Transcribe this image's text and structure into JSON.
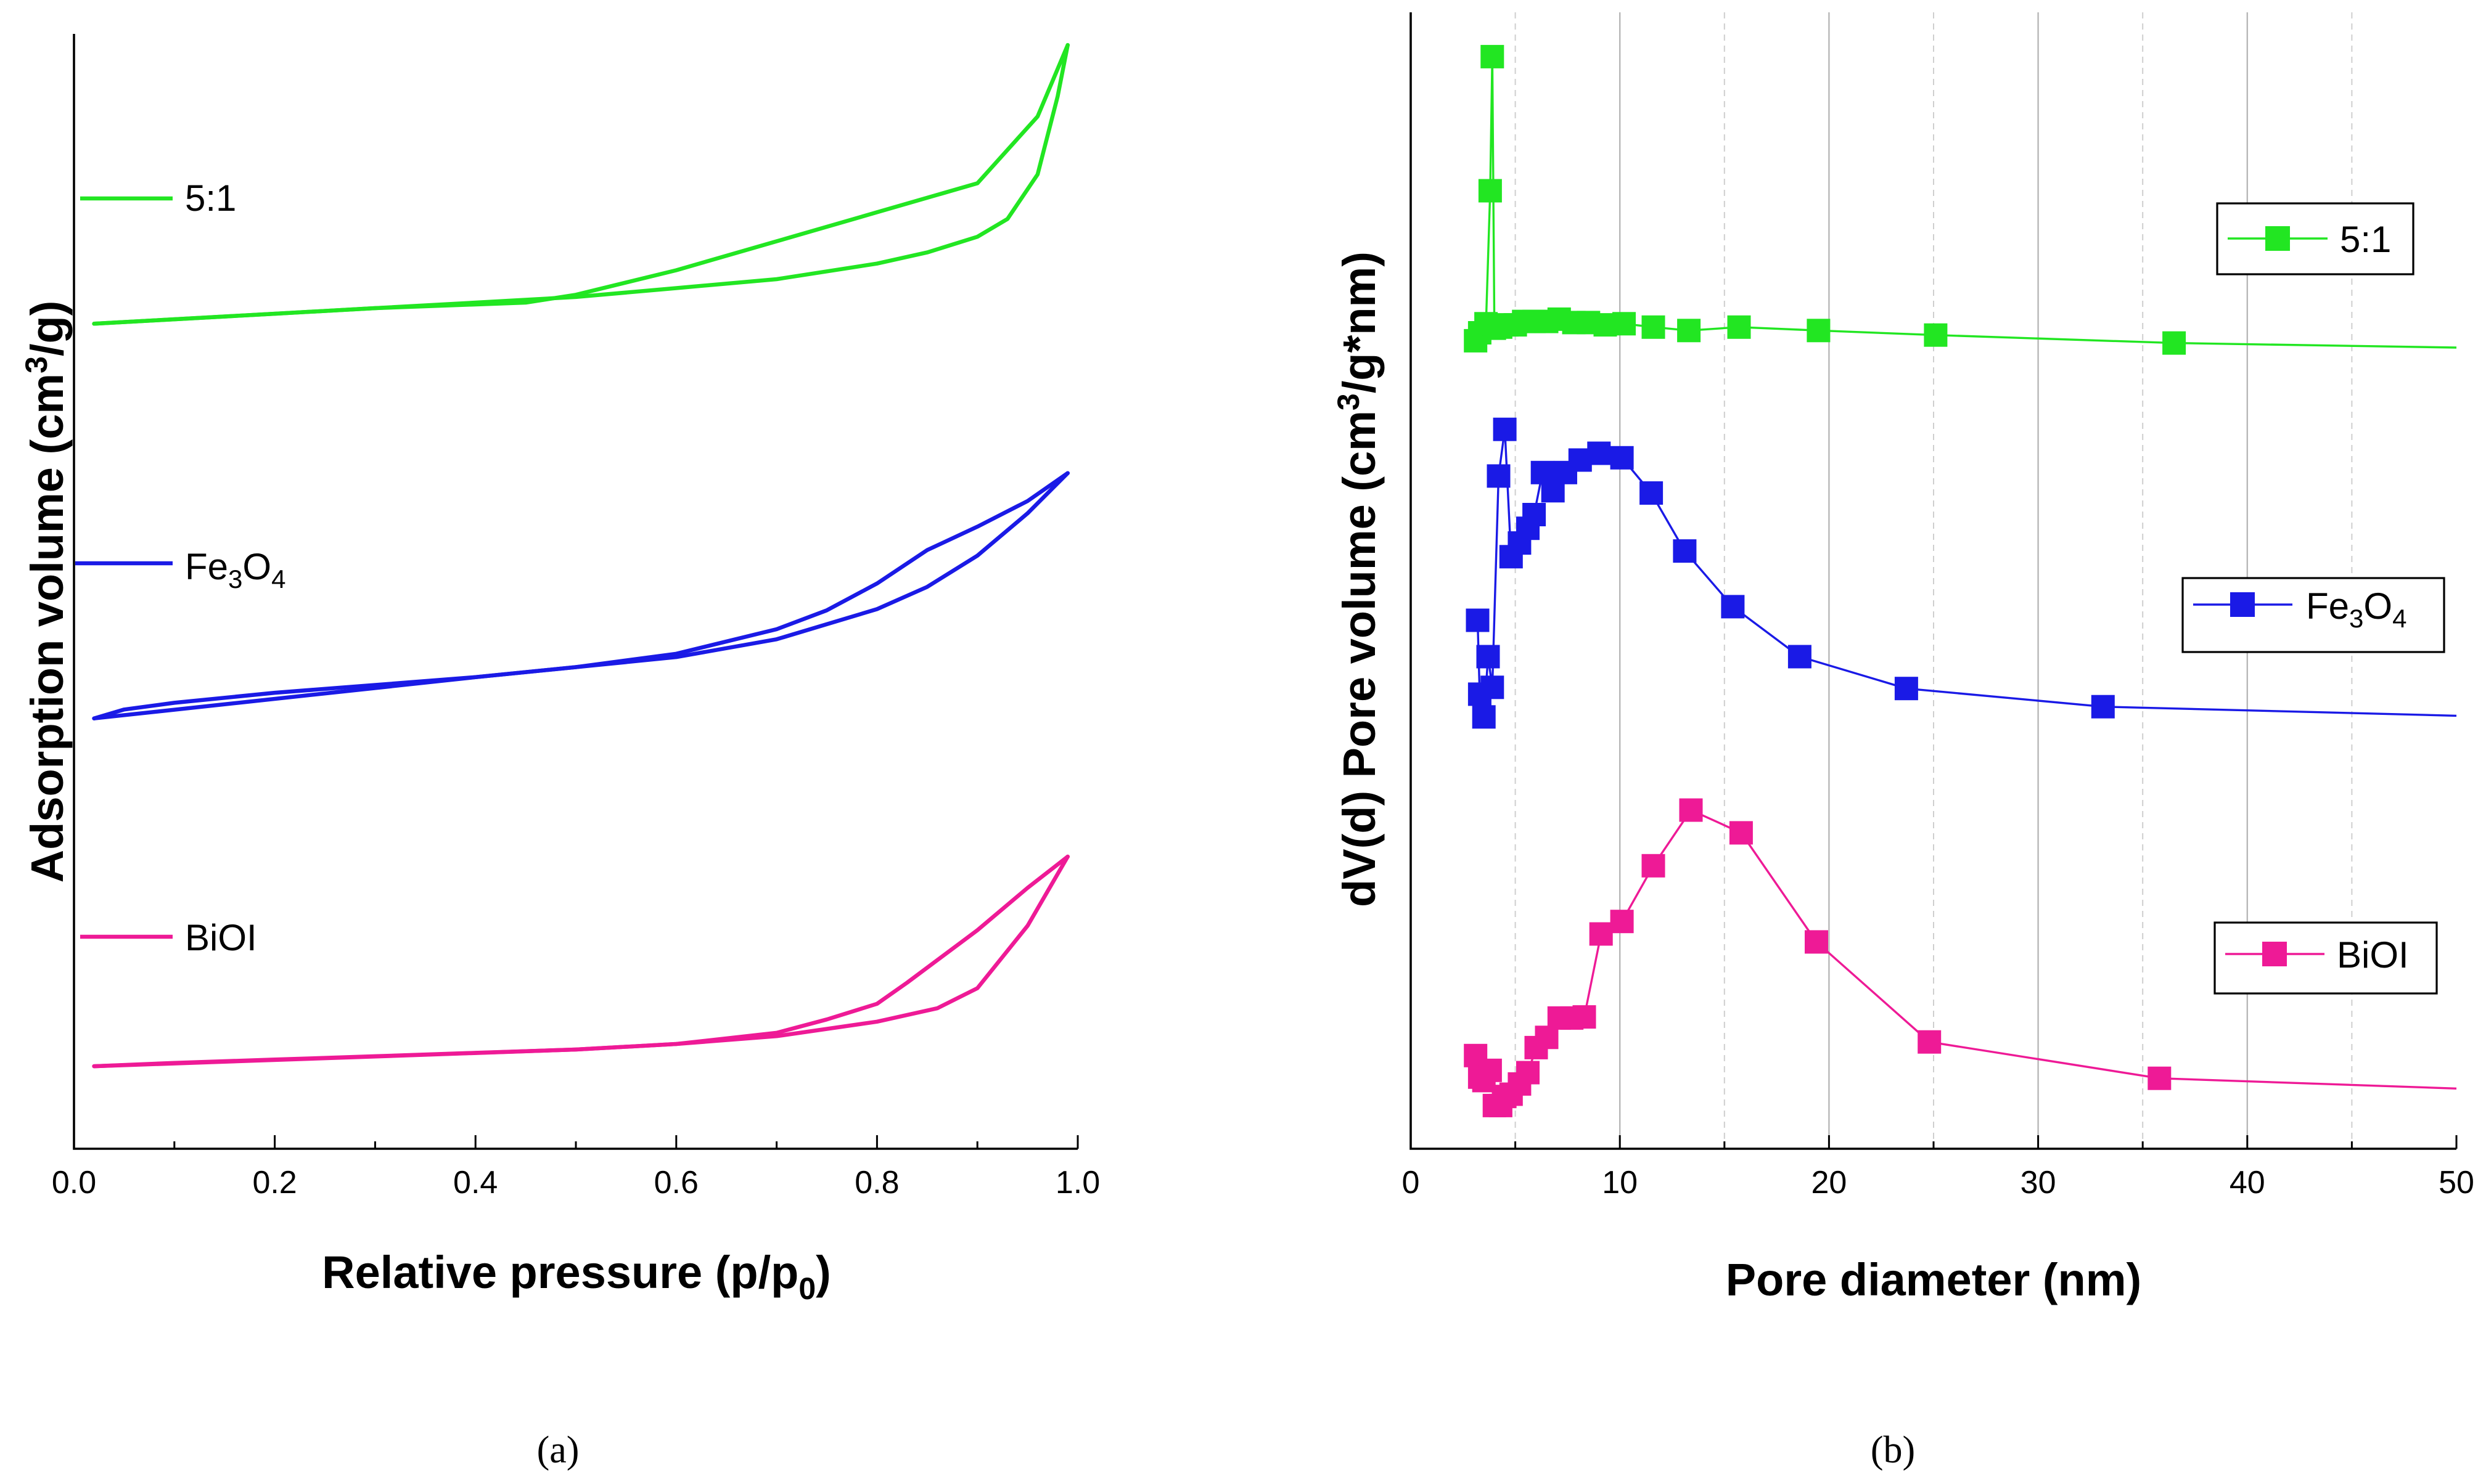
{
  "chart_data": [
    {
      "panel": "(a)",
      "type": "line",
      "title": "",
      "xlabel": "Relative pressure (p/p0)",
      "ylabel": "Adsorption volume (cm3/g)",
      "xlim": [
        0.0,
        1.0
      ],
      "ylim": [
        0,
        100
      ],
      "x_ticks": [
        "0.0",
        "0.2",
        "0.4",
        "0.6",
        "0.8",
        "1.0"
      ],
      "y_ticks_shown": false,
      "legend_placement": "inline-left",
      "series": [
        {
          "name": "5:1",
          "color": "#22e622",
          "adsorption": [
            [
              0.02,
              74.0
            ],
            [
              0.1,
              74.4
            ],
            [
              0.2,
              74.9
            ],
            [
              0.3,
              75.4
            ],
            [
              0.4,
              75.9
            ],
            [
              0.5,
              76.4
            ],
            [
              0.6,
              77.2
            ],
            [
              0.7,
              78.0
            ],
            [
              0.8,
              79.4
            ],
            [
              0.85,
              80.4
            ],
            [
              0.9,
              81.8
            ],
            [
              0.93,
              83.4
            ],
            [
              0.96,
              87.4
            ],
            [
              0.98,
              94.4
            ],
            [
              0.99,
              99.0
            ]
          ],
          "desorption": [
            [
              0.99,
              99.0
            ],
            [
              0.96,
              92.6
            ],
            [
              0.9,
              86.6
            ],
            [
              0.8,
              84.0
            ],
            [
              0.7,
              81.4
            ],
            [
              0.6,
              78.8
            ],
            [
              0.5,
              76.6
            ],
            [
              0.45,
              75.9
            ],
            [
              0.3,
              75.4
            ],
            [
              0.02,
              74.0
            ]
          ]
        },
        {
          "name": "Fe3O4",
          "color": "#1a1ae6",
          "adsorption": [
            [
              0.02,
              38.6
            ],
            [
              0.05,
              39.4
            ],
            [
              0.1,
              40.0
            ],
            [
              0.2,
              40.9
            ],
            [
              0.3,
              41.6
            ],
            [
              0.4,
              42.3
            ],
            [
              0.5,
              43.2
            ],
            [
              0.6,
              44.1
            ],
            [
              0.7,
              45.7
            ],
            [
              0.8,
              48.4
            ],
            [
              0.85,
              50.4
            ],
            [
              0.9,
              53.2
            ],
            [
              0.95,
              57.0
            ],
            [
              0.99,
              60.6
            ]
          ],
          "desorption": [
            [
              0.99,
              60.6
            ],
            [
              0.95,
              58.1
            ],
            [
              0.9,
              55.8
            ],
            [
              0.85,
              53.7
            ],
            [
              0.8,
              50.7
            ],
            [
              0.75,
              48.3
            ],
            [
              0.7,
              46.6
            ],
            [
              0.6,
              44.4
            ],
            [
              0.5,
              43.2
            ],
            [
              0.4,
              42.3
            ],
            [
              0.02,
              38.6
            ]
          ]
        },
        {
          "name": "BiOI",
          "color": "#ee1a96",
          "adsorption": [
            [
              0.02,
              7.4
            ],
            [
              0.1,
              7.7
            ],
            [
              0.2,
              8.0
            ],
            [
              0.3,
              8.3
            ],
            [
              0.4,
              8.6
            ],
            [
              0.5,
              8.9
            ],
            [
              0.6,
              9.4
            ],
            [
              0.7,
              10.1
            ],
            [
              0.8,
              11.4
            ],
            [
              0.86,
              12.6
            ],
            [
              0.9,
              14.4
            ],
            [
              0.95,
              20.0
            ],
            [
              0.99,
              26.2
            ]
          ],
          "desorption": [
            [
              0.99,
              26.2
            ],
            [
              0.95,
              23.4
            ],
            [
              0.9,
              19.6
            ],
            [
              0.83,
              14.9
            ],
            [
              0.8,
              13.0
            ],
            [
              0.75,
              11.6
            ],
            [
              0.7,
              10.4
            ],
            [
              0.6,
              9.4
            ],
            [
              0.5,
              8.9
            ],
            [
              0.02,
              7.4
            ]
          ]
        }
      ]
    },
    {
      "panel": "(b)",
      "type": "line",
      "title": "",
      "xlabel": "Pore diameter (nm)",
      "ylabel": "dV(d) Pore volume (cm3/g*nm)",
      "xlim": [
        0,
        50
      ],
      "ylim": [
        0,
        100
      ],
      "x_ticks": [
        "0",
        "10",
        "20",
        "30",
        "40",
        "50"
      ],
      "y_ticks_shown": false,
      "grid": "vertical",
      "legend_placement": "right",
      "series": [
        {
          "name": "5:1",
          "color": "#22e622",
          "marker": "square",
          "x": [
            3.1,
            3.3,
            3.6,
            3.8,
            3.9,
            4.0,
            4.3,
            4.6,
            5.0,
            5.4,
            5.9,
            6.5,
            7.1,
            7.8,
            8.5,
            9.3,
            10.2,
            11.6,
            13.3,
            15.7,
            19.5,
            25.1,
            36.5,
            50.0
          ],
          "y": [
            71.1,
            71.8,
            72.6,
            84.3,
            96.1,
            72.2,
            72.3,
            72.5,
            72.5,
            72.8,
            72.8,
            72.8,
            73.0,
            72.7,
            72.7,
            72.5,
            72.6,
            72.3,
            72.0,
            72.3,
            72.0,
            71.6,
            70.9,
            70.5
          ],
          "markers_on": [
            0,
            1,
            2,
            3,
            4,
            5,
            6,
            7,
            8,
            9,
            10,
            11,
            12,
            13,
            14,
            15,
            16,
            17,
            18,
            19,
            20,
            21,
            22
          ]
        },
        {
          "name": "Fe3O4",
          "color": "#1a1ae6",
          "marker": "square",
          "x": [
            3.2,
            3.3,
            3.5,
            3.7,
            3.9,
            4.2,
            4.5,
            4.8,
            5.2,
            5.6,
            5.9,
            6.3,
            6.8,
            7.4,
            8.1,
            9.0,
            10.1,
            11.5,
            13.1,
            15.4,
            18.6,
            23.7,
            33.1,
            50.0
          ],
          "y": [
            46.5,
            40.0,
            38.0,
            43.3,
            40.6,
            59.2,
            63.3,
            52.1,
            53.3,
            54.6,
            55.8,
            59.5,
            57.9,
            59.5,
            60.6,
            61.2,
            60.8,
            57.7,
            52.6,
            47.7,
            43.3,
            40.5,
            38.9,
            38.1
          ],
          "markers_on": [
            0,
            1,
            2,
            3,
            4,
            5,
            6,
            7,
            8,
            9,
            10,
            11,
            12,
            13,
            14,
            15,
            16,
            17,
            18,
            19,
            20,
            21,
            22
          ]
        },
        {
          "name": "BiOI",
          "color": "#ee1a96",
          "marker": "square",
          "x": [
            3.1,
            3.3,
            3.5,
            3.8,
            4.0,
            4.3,
            4.5,
            4.8,
            5.2,
            5.6,
            6.0,
            6.5,
            7.1,
            7.7,
            8.3,
            9.1,
            10.1,
            11.6,
            13.4,
            15.8,
            19.4,
            24.8,
            35.8,
            50.0
          ],
          "y": [
            8.2,
            6.3,
            6.0,
            6.9,
            3.8,
            3.8,
            4.6,
            4.8,
            5.7,
            6.7,
            8.9,
            9.8,
            11.5,
            11.5,
            11.6,
            18.9,
            20.0,
            24.9,
            29.8,
            27.8,
            18.2,
            9.4,
            6.2,
            5.3
          ],
          "markers_on": [
            0,
            1,
            2,
            3,
            4,
            5,
            6,
            7,
            8,
            9,
            10,
            11,
            12,
            13,
            14,
            15,
            16,
            17,
            18,
            19,
            20,
            21,
            22
          ]
        }
      ]
    }
  ],
  "captions": {
    "a": "(a)",
    "b": "(b)"
  },
  "legend_a": {
    "s1": "5:1",
    "s2_main": "Fe",
    "s2_sub1": "3",
    "s2_mid": "O",
    "s2_sub2": "4",
    "s3": "BiOI"
  },
  "legend_b": {
    "s1": "5:1",
    "s2_main": "Fe",
    "s2_sub1": "3",
    "s2_mid": "O",
    "s2_sub2": "4",
    "s3": "BiOI"
  },
  "labels": {
    "a_x_main": "Relative pressure (p/p",
    "a_x_sub": "0",
    "a_x_end": ")",
    "a_y_main": "Adsorption volume (cm",
    "a_y_sup": "3",
    "a_y_end": "/g)",
    "b_x": "Pore diameter (nm)",
    "b_y_main": "dV(d) Pore volume (cm",
    "b_y_sup": "3",
    "b_y_end": "/g*nm)"
  }
}
